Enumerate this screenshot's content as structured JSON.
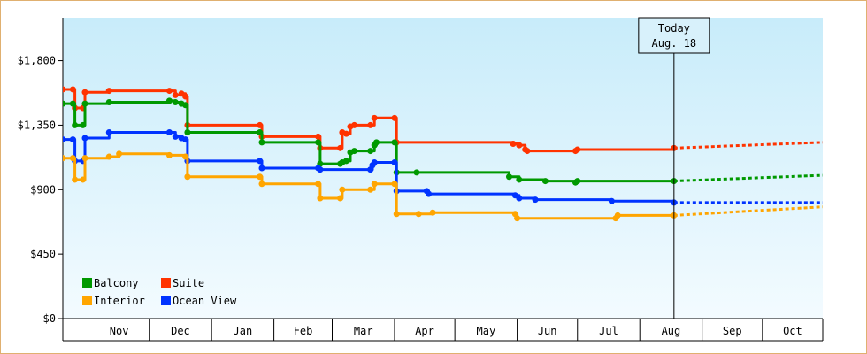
{
  "chart_data": {
    "type": "line",
    "xlabel": "",
    "ylabel": "",
    "ylim": [
      0,
      2100
    ],
    "y_ticks": [
      {
        "value": 0,
        "label": "$0"
      },
      {
        "value": 450,
        "label": "$450"
      },
      {
        "value": 900,
        "label": "$900"
      },
      {
        "value": 1350,
        "label": "$1,350"
      },
      {
        "value": 1800,
        "label": "$1,800"
      }
    ],
    "x_domain": [
      "2023-10-19",
      "2024-10-31"
    ],
    "months": [
      {
        "label": "Nov",
        "start": "2023-11-01"
      },
      {
        "label": "Dec",
        "start": "2023-12-01"
      },
      {
        "label": "Jan",
        "start": "2024-01-01"
      },
      {
        "label": "Feb",
        "start": "2024-02-01"
      },
      {
        "label": "Mar",
        "start": "2024-03-01"
      },
      {
        "label": "Apr",
        "start": "2024-04-01"
      },
      {
        "label": "May",
        "start": "2024-05-01"
      },
      {
        "label": "Jun",
        "start": "2024-06-01"
      },
      {
        "label": "Jul",
        "start": "2024-07-01"
      },
      {
        "label": "Aug",
        "start": "2024-08-01"
      },
      {
        "label": "Sep",
        "start": "2024-09-01"
      },
      {
        "label": "Oct",
        "start": "2024-10-01"
      }
    ],
    "today": {
      "date": "2024-08-18",
      "line1": "Today",
      "line2": "Aug. 18"
    },
    "legend_position": "bottom-left",
    "grid": false,
    "series": [
      {
        "name": "Suite",
        "color": "#ff3300",
        "points": [
          [
            "2023-10-19",
            1600
          ],
          [
            "2023-10-24",
            1600
          ],
          [
            "2023-10-25",
            1470
          ],
          [
            "2023-10-29",
            1470
          ],
          [
            "2023-10-30",
            1580
          ],
          [
            "2023-11-11",
            1590
          ],
          [
            "2023-12-11",
            1590
          ],
          [
            "2023-12-14",
            1560
          ],
          [
            "2023-12-17",
            1570
          ],
          [
            "2023-12-19",
            1550
          ],
          [
            "2023-12-20",
            1350
          ],
          [
            "2024-01-25",
            1350
          ],
          [
            "2024-01-26",
            1270
          ],
          [
            "2024-02-23",
            1270
          ],
          [
            "2024-02-24",
            1190
          ],
          [
            "2024-03-05",
            1190
          ],
          [
            "2024-03-06",
            1300
          ],
          [
            "2024-03-08",
            1290
          ],
          [
            "2024-03-10",
            1340
          ],
          [
            "2024-03-12",
            1350
          ],
          [
            "2024-03-20",
            1350
          ],
          [
            "2024-03-22",
            1400
          ],
          [
            "2024-04-01",
            1400
          ],
          [
            "2024-04-02",
            1230
          ],
          [
            "2024-05-30",
            1220
          ],
          [
            "2024-06-02",
            1210
          ],
          [
            "2024-06-05",
            1180
          ],
          [
            "2024-06-06",
            1170
          ],
          [
            "2024-06-30",
            1170
          ],
          [
            "2024-07-01",
            1180
          ],
          [
            "2024-08-18",
            1190
          ]
        ],
        "forecast": [
          [
            "2024-08-18",
            1190
          ],
          [
            "2024-10-31",
            1230
          ]
        ]
      },
      {
        "name": "Balcony",
        "color": "#009900",
        "points": [
          [
            "2023-10-19",
            1500
          ],
          [
            "2023-10-24",
            1500
          ],
          [
            "2023-10-25",
            1350
          ],
          [
            "2023-10-29",
            1350
          ],
          [
            "2023-10-30",
            1500
          ],
          [
            "2023-11-11",
            1510
          ],
          [
            "2023-12-11",
            1520
          ],
          [
            "2023-12-14",
            1510
          ],
          [
            "2023-12-17",
            1500
          ],
          [
            "2023-12-19",
            1490
          ],
          [
            "2023-12-20",
            1300
          ],
          [
            "2024-01-25",
            1300
          ],
          [
            "2024-01-26",
            1230
          ],
          [
            "2024-02-23",
            1230
          ],
          [
            "2024-02-24",
            1080
          ],
          [
            "2024-03-05",
            1080
          ],
          [
            "2024-03-06",
            1090
          ],
          [
            "2024-03-08",
            1100
          ],
          [
            "2024-03-10",
            1160
          ],
          [
            "2024-03-12",
            1170
          ],
          [
            "2024-03-20",
            1170
          ],
          [
            "2024-03-22",
            1210
          ],
          [
            "2024-03-23",
            1230
          ],
          [
            "2024-04-01",
            1230
          ],
          [
            "2024-04-02",
            1020
          ],
          [
            "2024-04-12",
            1020
          ],
          [
            "2024-05-28",
            990
          ],
          [
            "2024-06-02",
            970
          ],
          [
            "2024-06-15",
            960
          ],
          [
            "2024-06-30",
            950
          ],
          [
            "2024-07-01",
            960
          ],
          [
            "2024-08-18",
            960
          ]
        ],
        "forecast": [
          [
            "2024-08-18",
            960
          ],
          [
            "2024-10-31",
            1000
          ]
        ]
      },
      {
        "name": "Ocean View",
        "color": "#0033ff",
        "points": [
          [
            "2023-10-19",
            1250
          ],
          [
            "2023-10-24",
            1250
          ],
          [
            "2023-10-25",
            1100
          ],
          [
            "2023-10-29",
            1100
          ],
          [
            "2023-10-30",
            1260
          ],
          [
            "2023-11-11",
            1300
          ],
          [
            "2023-12-11",
            1300
          ],
          [
            "2023-12-14",
            1270
          ],
          [
            "2023-12-17",
            1260
          ],
          [
            "2023-12-19",
            1250
          ],
          [
            "2023-12-20",
            1100
          ],
          [
            "2024-01-25",
            1100
          ],
          [
            "2024-01-26",
            1050
          ],
          [
            "2024-02-23",
            1050
          ],
          [
            "2024-02-24",
            1040
          ],
          [
            "2024-03-20",
            1040
          ],
          [
            "2024-03-21",
            1070
          ],
          [
            "2024-03-22",
            1090
          ],
          [
            "2024-04-01",
            1090
          ],
          [
            "2024-04-02",
            890
          ],
          [
            "2024-04-17",
            890
          ],
          [
            "2024-04-18",
            870
          ],
          [
            "2024-05-31",
            860
          ],
          [
            "2024-06-02",
            840
          ],
          [
            "2024-06-10",
            830
          ],
          [
            "2024-07-18",
            820
          ],
          [
            "2024-08-18",
            810
          ]
        ],
        "forecast": [
          [
            "2024-08-18",
            810
          ],
          [
            "2024-10-31",
            810
          ]
        ]
      },
      {
        "name": "Interior",
        "color": "#ffa500",
        "points": [
          [
            "2023-10-19",
            1120
          ],
          [
            "2023-10-24",
            1120
          ],
          [
            "2023-10-25",
            970
          ],
          [
            "2023-10-29",
            970
          ],
          [
            "2023-10-30",
            1120
          ],
          [
            "2023-11-11",
            1130
          ],
          [
            "2023-11-16",
            1150
          ],
          [
            "2023-12-11",
            1140
          ],
          [
            "2023-12-19",
            1130
          ],
          [
            "2023-12-20",
            990
          ],
          [
            "2024-01-25",
            990
          ],
          [
            "2024-01-26",
            940
          ],
          [
            "2024-02-23",
            940
          ],
          [
            "2024-02-24",
            840
          ],
          [
            "2024-03-05",
            840
          ],
          [
            "2024-03-06",
            900
          ],
          [
            "2024-03-20",
            900
          ],
          [
            "2024-03-22",
            940
          ],
          [
            "2024-04-01",
            940
          ],
          [
            "2024-04-02",
            730
          ],
          [
            "2024-04-13",
            730
          ],
          [
            "2024-04-20",
            740
          ],
          [
            "2024-05-31",
            730
          ],
          [
            "2024-06-01",
            700
          ],
          [
            "2024-07-20",
            700
          ],
          [
            "2024-07-21",
            720
          ],
          [
            "2024-08-18",
            720
          ]
        ],
        "forecast": [
          [
            "2024-08-18",
            720
          ],
          [
            "2024-10-31",
            780
          ]
        ]
      }
    ],
    "legend": [
      {
        "name": "Balcony",
        "color": "#009900"
      },
      {
        "name": "Suite",
        "color": "#ff3300"
      },
      {
        "name": "Interior",
        "color": "#ffa500"
      },
      {
        "name": "Ocean View",
        "color": "#0033ff"
      }
    ]
  }
}
